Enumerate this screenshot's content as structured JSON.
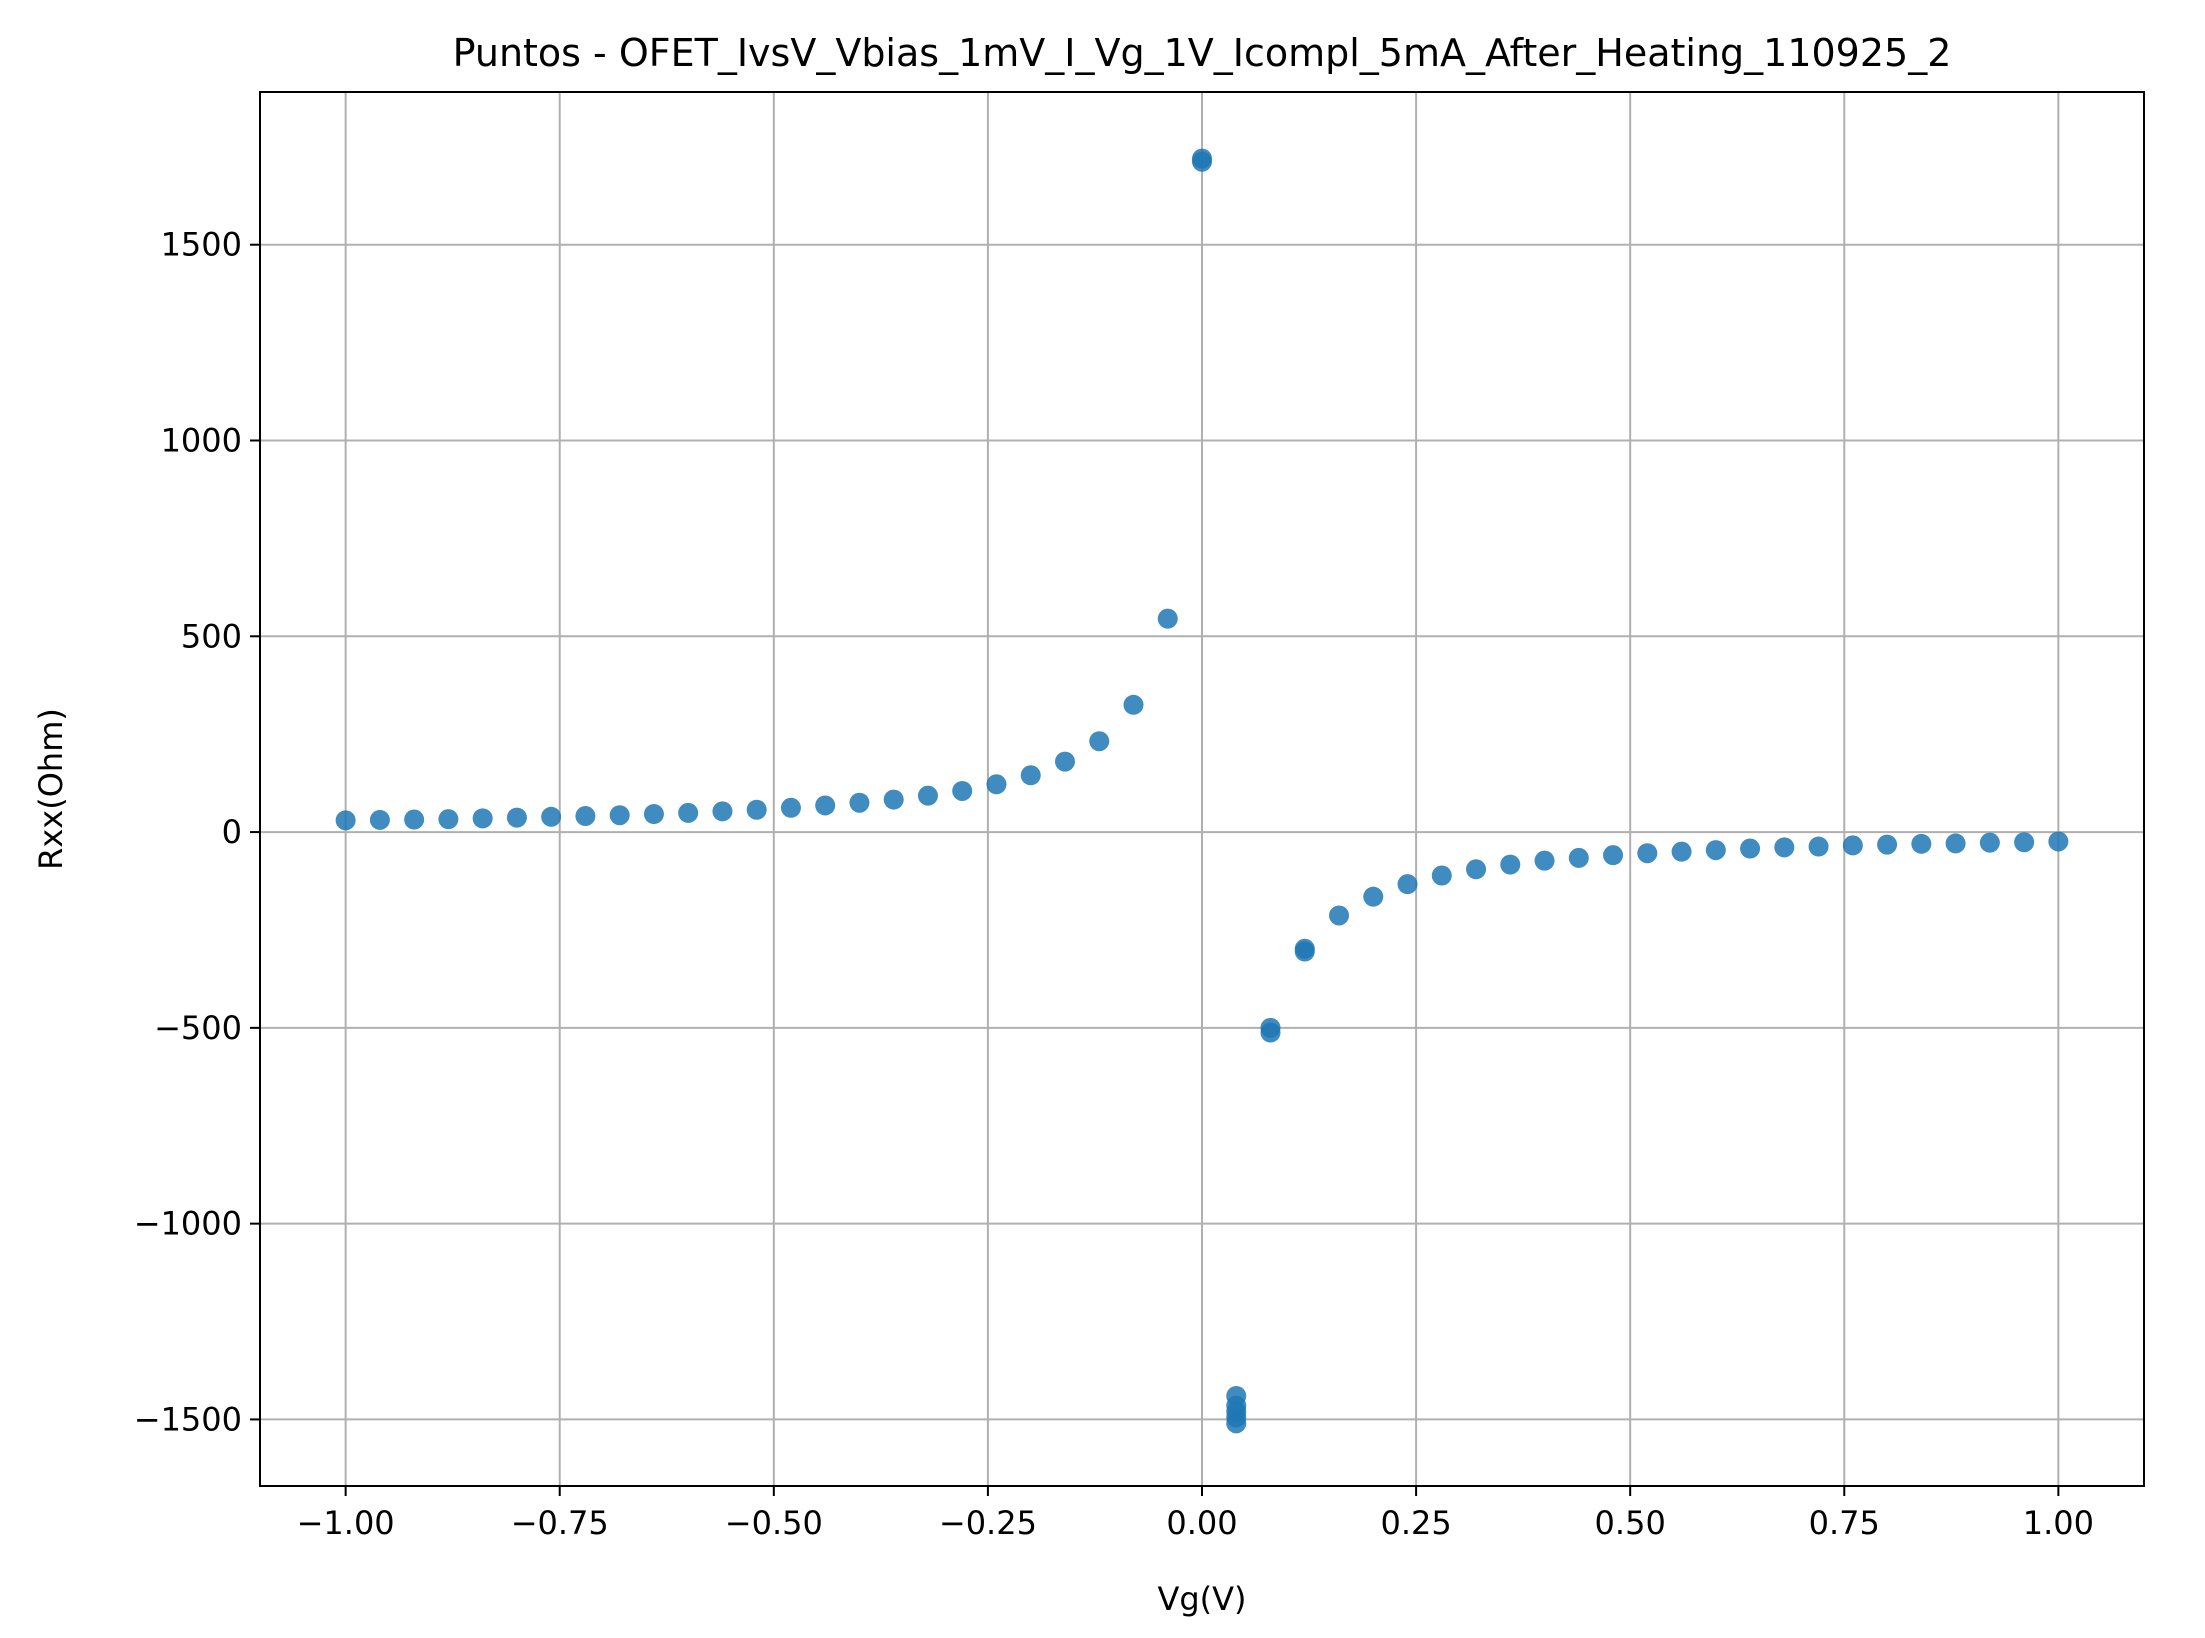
{
  "chart_data": {
    "type": "scatter",
    "title": "Puntos - OFET_IvsV_Vbias_1mV_I_Vg_1V_Icompl_5mA_After_Heating_110925_2",
    "xlabel": "Vg(V)",
    "ylabel": "Rxx(Ohm)",
    "xlim": [
      -1.1,
      1.1
    ],
    "ylim": [
      -1670,
      1890
    ],
    "grid": true,
    "x_ticks": [
      {
        "value": -1.0,
        "label": "−1.00"
      },
      {
        "value": -0.75,
        "label": "−0.75"
      },
      {
        "value": -0.5,
        "label": "−0.50"
      },
      {
        "value": -0.25,
        "label": "−0.25"
      },
      {
        "value": 0.0,
        "label": "0.00"
      },
      {
        "value": 0.25,
        "label": "0.25"
      },
      {
        "value": 0.5,
        "label": "0.50"
      },
      {
        "value": 0.75,
        "label": "0.75"
      },
      {
        "value": 1.0,
        "label": "1.00"
      }
    ],
    "y_ticks": [
      {
        "value": 1500,
        "label": "1500"
      },
      {
        "value": 1000,
        "label": "1000"
      },
      {
        "value": 500,
        "label": "500"
      },
      {
        "value": 0,
        "label": "0"
      },
      {
        "value": -500,
        "label": "−500"
      },
      {
        "value": -1000,
        "label": "−1000"
      },
      {
        "value": -1500,
        "label": "−1500"
      }
    ],
    "marker_color": "#1f77b4",
    "points": [
      {
        "x": -1.0,
        "y": 30
      },
      {
        "x": -0.96,
        "y": 31
      },
      {
        "x": -0.92,
        "y": 32
      },
      {
        "x": -0.88,
        "y": 33
      },
      {
        "x": -0.84,
        "y": 35
      },
      {
        "x": -0.8,
        "y": 37
      },
      {
        "x": -0.76,
        "y": 39
      },
      {
        "x": -0.72,
        "y": 41
      },
      {
        "x": -0.68,
        "y": 43
      },
      {
        "x": -0.64,
        "y": 46
      },
      {
        "x": -0.6,
        "y": 49
      },
      {
        "x": -0.56,
        "y": 53
      },
      {
        "x": -0.52,
        "y": 57
      },
      {
        "x": -0.48,
        "y": 62
      },
      {
        "x": -0.44,
        "y": 68
      },
      {
        "x": -0.4,
        "y": 75
      },
      {
        "x": -0.36,
        "y": 83
      },
      {
        "x": -0.32,
        "y": 93
      },
      {
        "x": -0.28,
        "y": 105
      },
      {
        "x": -0.24,
        "y": 122
      },
      {
        "x": -0.2,
        "y": 145
      },
      {
        "x": -0.16,
        "y": 180
      },
      {
        "x": -0.12,
        "y": 232
      },
      {
        "x": -0.08,
        "y": 325
      },
      {
        "x": -0.04,
        "y": 545
      },
      {
        "x": 0.0,
        "y": 1720
      },
      {
        "x": 0.0,
        "y": 1712
      },
      {
        "x": 0.04,
        "y": -1440
      },
      {
        "x": 0.04,
        "y": -1465
      },
      {
        "x": 0.04,
        "y": -1480
      },
      {
        "x": 0.04,
        "y": -1495
      },
      {
        "x": 0.04,
        "y": -1510
      },
      {
        "x": 0.08,
        "y": -500
      },
      {
        "x": 0.08,
        "y": -512
      },
      {
        "x": 0.12,
        "y": -298
      },
      {
        "x": 0.12,
        "y": -305
      },
      {
        "x": 0.16,
        "y": -213
      },
      {
        "x": 0.2,
        "y": -165
      },
      {
        "x": 0.24,
        "y": -133
      },
      {
        "x": 0.28,
        "y": -111
      },
      {
        "x": 0.32,
        "y": -95
      },
      {
        "x": 0.36,
        "y": -83
      },
      {
        "x": 0.4,
        "y": -73
      },
      {
        "x": 0.44,
        "y": -66
      },
      {
        "x": 0.48,
        "y": -59
      },
      {
        "x": 0.52,
        "y": -54
      },
      {
        "x": 0.56,
        "y": -50
      },
      {
        "x": 0.6,
        "y": -46
      },
      {
        "x": 0.64,
        "y": -42
      },
      {
        "x": 0.68,
        "y": -39
      },
      {
        "x": 0.72,
        "y": -37
      },
      {
        "x": 0.76,
        "y": -34
      },
      {
        "x": 0.8,
        "y": -32
      },
      {
        "x": 0.84,
        "y": -30
      },
      {
        "x": 0.88,
        "y": -29
      },
      {
        "x": 0.92,
        "y": -27
      },
      {
        "x": 0.96,
        "y": -26
      },
      {
        "x": 1.0,
        "y": -24
      }
    ]
  }
}
